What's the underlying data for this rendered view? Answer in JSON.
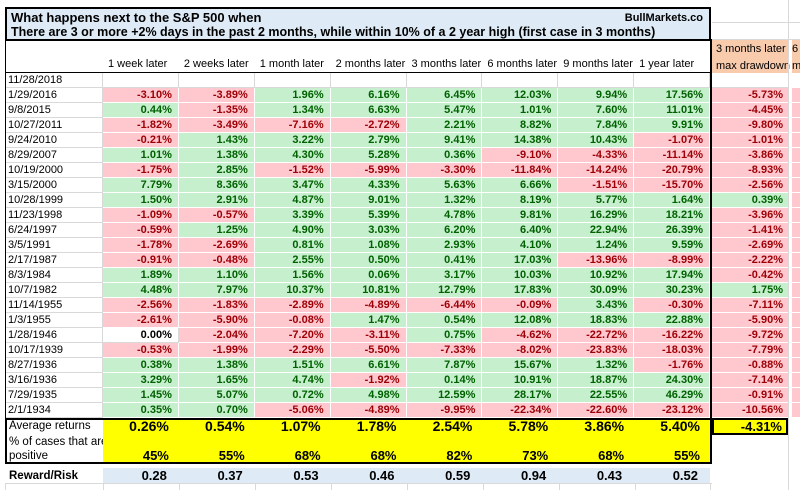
{
  "title": {
    "line1": "What happens next to the S&P 500 when",
    "line2": "There are 3 or more +2% days in the past 2 months, while within 10% of a 2 year high (first case in 3 months)",
    "brand": "BullMarkets.co"
  },
  "columns": [
    "1 week later",
    "2 weeks later",
    "1 month later",
    "2 months later",
    "3 months later",
    "6 months later",
    "9 months later",
    "1 year later"
  ],
  "drawdown_header": {
    "line1": "3 months later",
    "line2": "max drawdown"
  },
  "edge_column": {
    "fragment1": "6",
    "fragment2": "m"
  },
  "rows": [
    {
      "date": "11/28/2018",
      "values": [
        null,
        null,
        null,
        null,
        null,
        null,
        null,
        null
      ],
      "drawdown": null
    },
    {
      "date": "1/29/2016",
      "values": [
        "-3.10%",
        "-3.89%",
        "1.96%",
        "6.16%",
        "6.45%",
        "12.03%",
        "9.94%",
        "17.56%"
      ],
      "drawdown": "-5.73%"
    },
    {
      "date": "9/8/2015",
      "values": [
        "0.44%",
        "-1.35%",
        "1.34%",
        "6.63%",
        "5.47%",
        "1.01%",
        "7.60%",
        "11.01%"
      ],
      "drawdown": "-4.45%"
    },
    {
      "date": "10/27/2011",
      "values": [
        "-1.82%",
        "-3.49%",
        "-7.16%",
        "-2.72%",
        "2.21%",
        "8.82%",
        "7.84%",
        "9.91%"
      ],
      "drawdown": "-9.80%"
    },
    {
      "date": "9/24/2010",
      "values": [
        "-0.21%",
        "1.43%",
        "3.22%",
        "2.79%",
        "9.41%",
        "14.38%",
        "10.43%",
        "-1.07%"
      ],
      "drawdown": "-1.01%"
    },
    {
      "date": "8/29/2007",
      "values": [
        "1.01%",
        "1.38%",
        "4.30%",
        "5.28%",
        "0.36%",
        "-9.10%",
        "-4.33%",
        "-11.14%"
      ],
      "drawdown": "-3.86%"
    },
    {
      "date": "10/19/2000",
      "values": [
        "-1.75%",
        "2.85%",
        "-1.52%",
        "-5.99%",
        "-3.30%",
        "-11.84%",
        "-14.24%",
        "-20.79%"
      ],
      "drawdown": "-8.93%"
    },
    {
      "date": "3/15/2000",
      "values": [
        "7.79%",
        "8.36%",
        "3.47%",
        "4.33%",
        "5.63%",
        "6.66%",
        "-1.51%",
        "-15.70%"
      ],
      "drawdown": "-2.56%"
    },
    {
      "date": "10/28/1999",
      "values": [
        "1.50%",
        "2.91%",
        "4.87%",
        "9.01%",
        "1.32%",
        "8.19%",
        "5.77%",
        "1.64%"
      ],
      "drawdown": "0.39%"
    },
    {
      "date": "11/23/1998",
      "values": [
        "-1.09%",
        "-0.57%",
        "3.39%",
        "5.39%",
        "4.78%",
        "9.81%",
        "16.29%",
        "18.21%"
      ],
      "drawdown": "-3.96%"
    },
    {
      "date": "6/24/1997",
      "values": [
        "-0.59%",
        "1.25%",
        "4.90%",
        "3.03%",
        "6.20%",
        "6.40%",
        "22.94%",
        "26.39%"
      ],
      "drawdown": "-1.41%"
    },
    {
      "date": "3/5/1991",
      "values": [
        "-1.78%",
        "-2.69%",
        "0.81%",
        "1.08%",
        "2.93%",
        "4.10%",
        "1.24%",
        "9.59%"
      ],
      "drawdown": "-2.69%"
    },
    {
      "date": "2/17/1987",
      "values": [
        "-0.91%",
        "-0.48%",
        "2.55%",
        "0.50%",
        "0.41%",
        "17.03%",
        "-13.96%",
        "-8.99%"
      ],
      "drawdown": "-2.22%"
    },
    {
      "date": "8/3/1984",
      "values": [
        "1.89%",
        "1.10%",
        "1.56%",
        "0.06%",
        "3.17%",
        "10.03%",
        "10.92%",
        "17.94%"
      ],
      "drawdown": "-0.42%"
    },
    {
      "date": "10/7/1982",
      "values": [
        "4.48%",
        "7.97%",
        "10.37%",
        "10.81%",
        "12.79%",
        "17.83%",
        "30.09%",
        "30.23%"
      ],
      "drawdown": "1.75%"
    },
    {
      "date": "11/14/1955",
      "values": [
        "-2.56%",
        "-1.83%",
        "-2.89%",
        "-4.89%",
        "-6.44%",
        "-0.09%",
        "3.43%",
        "-0.30%"
      ],
      "drawdown": "-7.11%"
    },
    {
      "date": "1/3/1955",
      "values": [
        "-2.61%",
        "-5.90%",
        "-0.08%",
        "1.47%",
        "0.54%",
        "12.08%",
        "18.83%",
        "22.88%"
      ],
      "drawdown": "-5.90%"
    },
    {
      "date": "1/28/1946",
      "values": [
        "0.00%",
        "-2.04%",
        "-7.20%",
        "-3.11%",
        "0.75%",
        "-4.62%",
        "-22.72%",
        "-16.22%"
      ],
      "drawdown": "-9.72%"
    },
    {
      "date": "10/17/1939",
      "values": [
        "-0.53%",
        "-1.99%",
        "-2.29%",
        "-5.50%",
        "-7.33%",
        "-8.02%",
        "-23.83%",
        "-18.03%"
      ],
      "drawdown": "-7.79%"
    },
    {
      "date": "8/27/1936",
      "values": [
        "0.38%",
        "1.38%",
        "1.51%",
        "6.61%",
        "7.87%",
        "15.67%",
        "1.32%",
        "-1.76%"
      ],
      "drawdown": "-0.88%"
    },
    {
      "date": "3/16/1936",
      "values": [
        "3.29%",
        "1.65%",
        "4.74%",
        "-1.92%",
        "0.14%",
        "10.91%",
        "18.87%",
        "24.30%"
      ],
      "drawdown": "-7.14%"
    },
    {
      "date": "7/29/1935",
      "values": [
        "1.45%",
        "5.07%",
        "0.72%",
        "4.98%",
        "12.59%",
        "28.17%",
        "22.55%",
        "46.29%"
      ],
      "drawdown": "-0.91%"
    },
    {
      "date": "2/1/1934",
      "values": [
        "0.35%",
        "0.70%",
        "-5.06%",
        "-4.89%",
        "-9.95%",
        "-22.34%",
        "-22.60%",
        "-23.12%"
      ],
      "drawdown": "-10.56%"
    }
  ],
  "summary": {
    "average_label": "Average returns",
    "average_values": [
      "0.26%",
      "0.54%",
      "1.07%",
      "1.78%",
      "2.54%",
      "5.78%",
      "3.86%",
      "5.40%"
    ],
    "average_drawdown": "-4.31%",
    "percent_label_line1": "% of cases that are",
    "percent_label_line2": "positive",
    "percent_values": [
      "45%",
      "55%",
      "68%",
      "68%",
      "82%",
      "73%",
      "68%",
      "55%"
    ],
    "reward_risk_label": "Reward/Risk",
    "reward_risk_values": [
      "0.28",
      "0.37",
      "0.53",
      "0.46",
      "0.59",
      "0.94",
      "0.43",
      "0.52"
    ]
  },
  "colors": {
    "positive_bg": "#C6EFCE",
    "positive_text": "#006100",
    "negative_bg": "#FFC7CE",
    "negative_text": "#9C0006",
    "summary_bg": "#FFFF00",
    "reward_row_bg": "#DEEAF6",
    "title_bg": "#DEEBF7",
    "drawdown_header_bg": "#F8CBAD"
  }
}
